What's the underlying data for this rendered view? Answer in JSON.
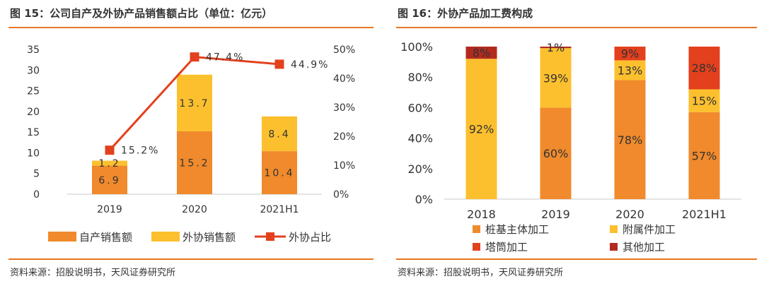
{
  "left": {
    "title": "图 15：公司自产及外协产品销售额占比（单位：亿元）",
    "source": "资料来源：招股说明书，天风证券研究所",
    "chart_data": {
      "type": "bar",
      "stacked": true,
      "categories": [
        "2019",
        "2020",
        "2021H1"
      ],
      "series": [
        {
          "name": "自产销售额",
          "values": [
            6.9,
            15.2,
            10.4
          ],
          "color": "#f08a2c",
          "kind": "bar"
        },
        {
          "name": "外协销售额",
          "values": [
            1.2,
            13.7,
            8.4
          ],
          "color": "#fcc02e",
          "kind": "bar"
        },
        {
          "name": "外协占比",
          "values": [
            15.2,
            47.4,
            44.9
          ],
          "labels": [
            "15.2%",
            "47.4%",
            "44.9%"
          ],
          "color": "#e3401e",
          "kind": "line",
          "axis": "right"
        }
      ],
      "ylim": [
        0,
        35
      ],
      "yticks": [
        "0",
        "5",
        "10",
        "15",
        "20",
        "25",
        "30",
        "35"
      ],
      "y2lim": [
        0,
        50
      ],
      "y2ticks": [
        "0%",
        "10%",
        "20%",
        "30%",
        "40%",
        "50%"
      ],
      "legend_position": "bottom"
    }
  },
  "right": {
    "title": "图 16：外协产品加工费构成",
    "source": "资料来源：招股说明书，天风证券研究所",
    "chart_data": {
      "type": "bar",
      "stacked": true,
      "percent": true,
      "categories": [
        "2018",
        "2019",
        "2020",
        "2021H1"
      ],
      "series": [
        {
          "name": "桩基主体加工",
          "values": [
            0,
            60,
            78,
            57
          ],
          "labels": [
            "",
            "60%",
            "78%",
            "57%"
          ],
          "color": "#f08a2c"
        },
        {
          "name": "附属件加工",
          "values": [
            92,
            39,
            13,
            15
          ],
          "labels": [
            "92%",
            "39%",
            "13%",
            "15%"
          ],
          "color": "#fcc02e"
        },
        {
          "name": "塔筒加工",
          "values": [
            0,
            0,
            9,
            28
          ],
          "labels": [
            "",
            "",
            "9%",
            "28%"
          ],
          "color": "#e3401e"
        },
        {
          "name": "其他加工",
          "values": [
            8,
            1,
            0,
            0
          ],
          "labels": [
            "8%",
            "1%",
            "",
            ""
          ],
          "color": "#b22a1e"
        }
      ],
      "ylim": [
        0,
        100
      ],
      "yticks": [
        "0%",
        "20%",
        "40%",
        "60%",
        "80%",
        "100%"
      ],
      "legend_position": "bottom"
    }
  }
}
